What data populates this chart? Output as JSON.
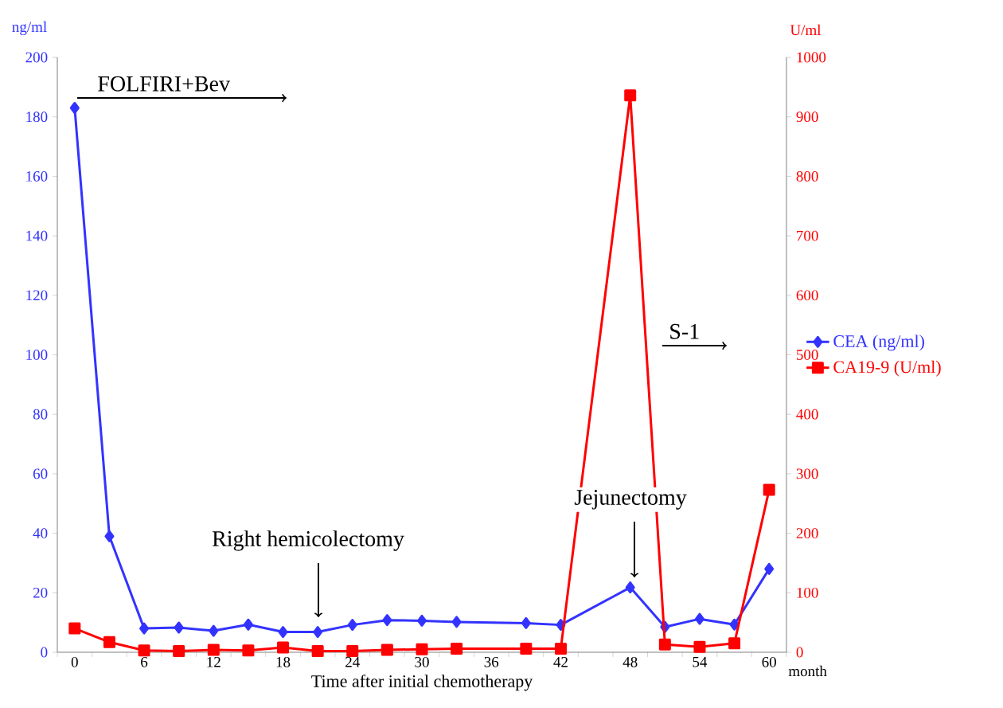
{
  "chart_data": {
    "type": "line",
    "xlabel": "Time after initial chemotherapy",
    "ylabel": "ng/ml",
    "y2label": "U/ml",
    "x": [
      0,
      3,
      6,
      9,
      12,
      15,
      18,
      21,
      24,
      27,
      30,
      33,
      39,
      42,
      48,
      51,
      54,
      57,
      60
    ],
    "series": [
      {
        "name": "CEA (ng/ml)",
        "color": "#3333ff",
        "marker": "diamond",
        "values": [
          183,
          39,
          8,
          8.3,
          7.2,
          9.3,
          6.8,
          6.8,
          9.2,
          10.8,
          10.6,
          10.2,
          9.8,
          9.2,
          21.8,
          8.5,
          11.2,
          9.3,
          28
        ]
      },
      {
        "name": "CA19-9 (U/ml)",
        "color": "#ff0000",
        "marker": "square",
        "axis": "y2",
        "values": [
          40,
          17,
          3,
          2,
          4,
          3,
          8,
          2,
          2,
          4,
          5,
          6,
          6,
          6,
          936,
          13,
          9,
          15,
          273
        ]
      }
    ],
    "xlim": [
      -1.5,
      61.5
    ],
    "xticks": [
      {
        "value": -1.5,
        "label": null
      },
      0,
      {
        "value": 1.5,
        "label": null
      },
      {
        "value": 4.5,
        "label": null
      },
      6,
      {
        "value": 7.5,
        "label": null
      },
      {
        "value": 10.5,
        "label": null
      },
      12,
      {
        "value": 13.5,
        "label": null
      },
      {
        "value": 16.5,
        "label": null
      },
      18,
      {
        "value": 19.5,
        "label": null
      },
      {
        "value": 22.5,
        "label": null
      },
      24,
      {
        "value": 25.5,
        "label": null
      },
      {
        "value": 28.5,
        "label": null
      },
      30,
      {
        "value": 31.5,
        "label": null
      },
      {
        "value": 34.5,
        "label": null
      },
      36,
      {
        "value": 37.5,
        "label": null
      },
      {
        "value": 40.5,
        "label": null
      },
      42,
      {
        "value": 43.5,
        "label": null
      },
      {
        "value": 46.5,
        "label": null
      },
      48,
      {
        "value": 49.5,
        "label": null
      },
      {
        "value": 52.5,
        "label": null
      },
      54,
      {
        "value": 55.5,
        "label": null
      },
      {
        "value": 58.5,
        "label": null
      },
      60,
      {
        "value": 61.5,
        "label": null
      }
    ],
    "ylim": [
      0,
      200
    ],
    "yticks": [
      0,
      20,
      40,
      60,
      80,
      100,
      120,
      140,
      160,
      180,
      200
    ],
    "y2lim": [
      0,
      1000
    ],
    "y2ticks": [
      0,
      100,
      200,
      300,
      400,
      500,
      600,
      700,
      800,
      900,
      1000
    ],
    "legend": "right",
    "grid": false,
    "line_style": "solid",
    "annotations": [
      "FOLFIRI+Bev",
      "Right hemicolectomy",
      "Jejunectomy",
      "S-1",
      "month"
    ]
  }
}
